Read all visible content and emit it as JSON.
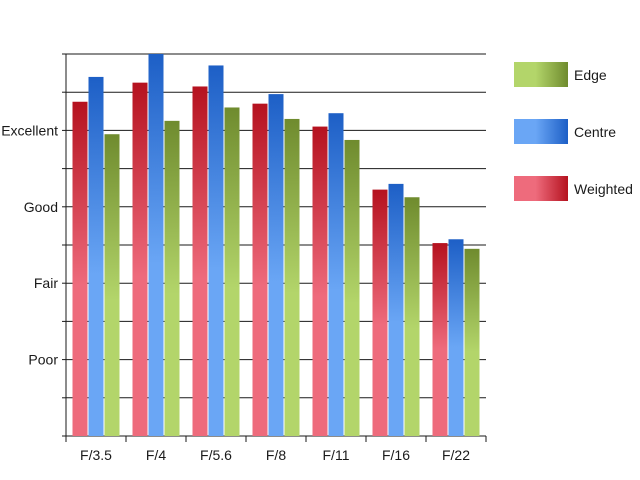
{
  "chart_data": {
    "type": "bar",
    "title": "",
    "xlabel": "",
    "ylabel": "",
    "categories": [
      "F/3.5",
      "F/4",
      "F/5.6",
      "F/8",
      "F/11",
      "F/16",
      "F/22"
    ],
    "y_tick_labels": [
      {
        "label": "Poor",
        "value": 2
      },
      {
        "label": "Fair",
        "value": 4
      },
      {
        "label": "Good",
        "value": 6
      },
      {
        "label": "Excellent",
        "value": 8
      }
    ],
    "ylim": [
      0,
      10
    ],
    "grid": true,
    "legend_position": "right",
    "series": [
      {
        "name": "Weighted",
        "color_light": "#ee6b7c",
        "color_dark": "#b5121f",
        "values": [
          8.75,
          9.25,
          9.15,
          8.7,
          8.1,
          6.45,
          5.05
        ]
      },
      {
        "name": "Centre",
        "color_light": "#6aa6f5",
        "color_dark": "#1d5fc6",
        "values": [
          9.4,
          10.0,
          9.7,
          8.95,
          8.45,
          6.6,
          5.15
        ]
      },
      {
        "name": "Edge",
        "color_light": "#b3d56a",
        "color_dark": "#6f8b2e",
        "values": [
          7.9,
          8.25,
          8.6,
          8.3,
          7.75,
          6.25,
          4.9
        ]
      }
    ],
    "legend_order": [
      "Edge",
      "Centre",
      "Weighted"
    ]
  }
}
